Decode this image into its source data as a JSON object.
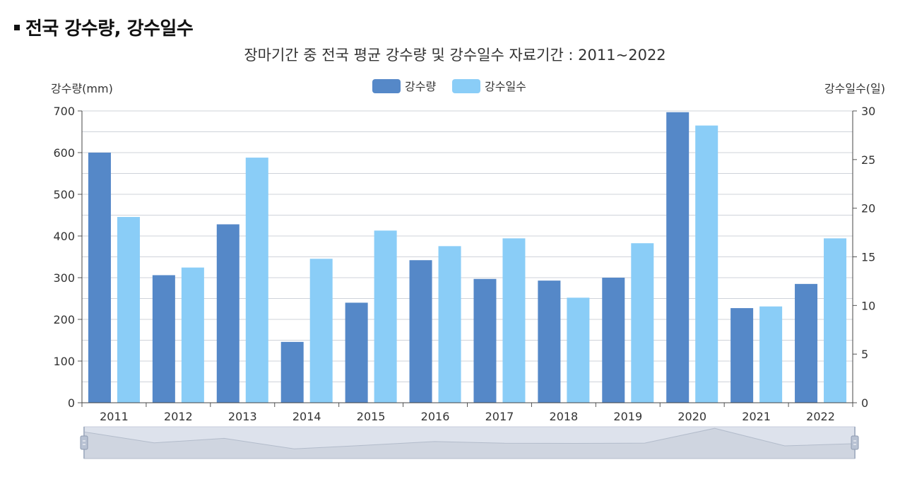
{
  "header": {
    "title": "전국 강수량, 강수일수"
  },
  "chart_data": {
    "type": "bar",
    "subtitle": "장마기간 중 전국 평균 강수량 및 강수일수 자료기간 : 2011~2022",
    "categories": [
      "2011",
      "2012",
      "2013",
      "2014",
      "2015",
      "2016",
      "2017",
      "2018",
      "2019",
      "2020",
      "2021",
      "2022"
    ],
    "series": [
      {
        "name": "강수량",
        "axis": "left",
        "color": "#5588c8",
        "values": [
          600,
          306,
          428,
          146,
          240,
          342,
          297,
          293,
          300,
          697,
          227,
          285
        ]
      },
      {
        "name": "강수일수",
        "axis": "right",
        "color": "#8acdf7",
        "values": [
          19.1,
          13.9,
          25.2,
          14.8,
          17.7,
          16.1,
          16.9,
          10.8,
          16.4,
          28.5,
          9.9,
          16.9
        ]
      }
    ],
    "y_left": {
      "label": "강수량(mm)",
      "range": [
        0,
        700
      ],
      "ticks": [
        "0",
        "100",
        "200",
        "300",
        "400",
        "500",
        "600",
        "700"
      ]
    },
    "y_right": {
      "label": "강수일수(일)",
      "range": [
        0,
        30
      ],
      "ticks": [
        "0",
        "5",
        "10",
        "15",
        "20",
        "25",
        "30"
      ]
    },
    "grid": true,
    "legend_position": "top-center",
    "data_zoom": true
  }
}
